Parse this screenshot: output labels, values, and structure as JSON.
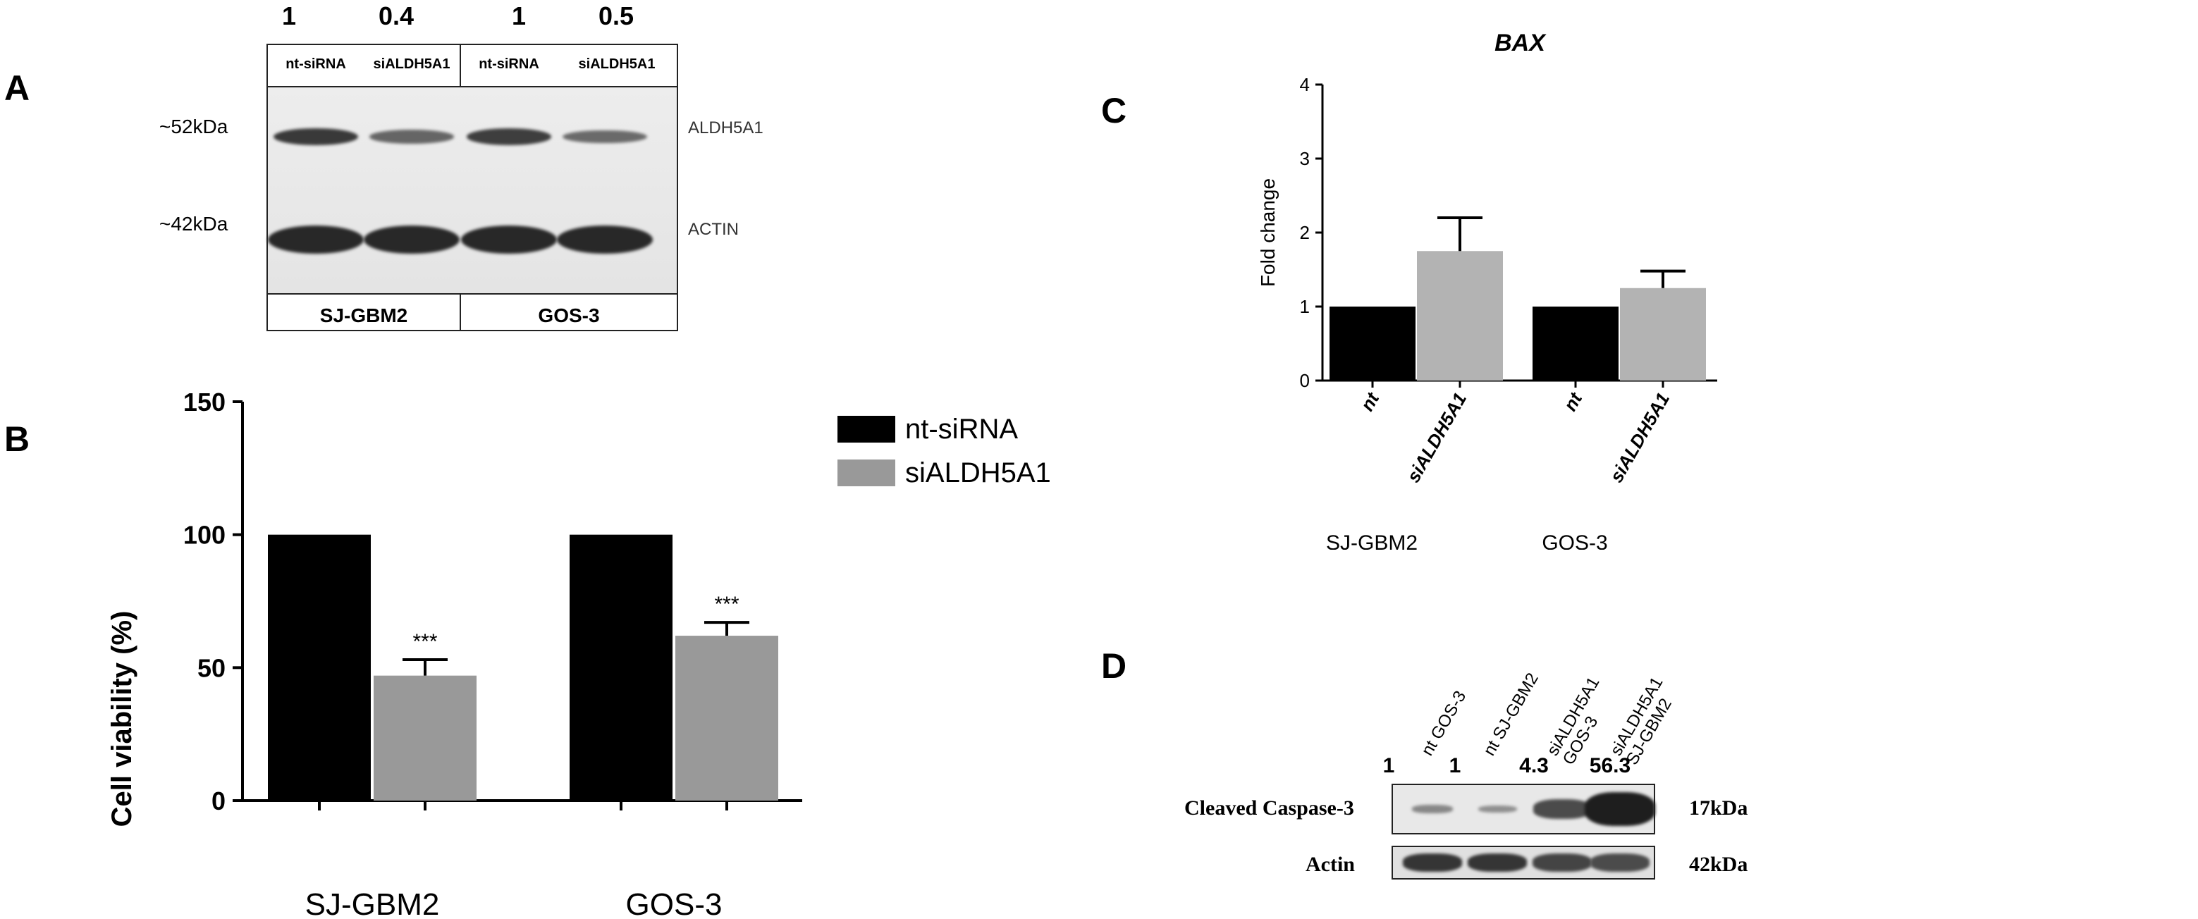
{
  "panel_labels": {
    "a": "A",
    "b": "B",
    "c": "C",
    "d": "D"
  },
  "panel_a": {
    "quantification": [
      "1",
      "0.4",
      "1",
      "0.5"
    ],
    "lanes": [
      "nt-siRNA",
      "siALDH5A1",
      "nt-siRNA",
      "siALDH5A1"
    ],
    "band_rows": [
      {
        "size": "~52kDa",
        "protein": "ALDH5A1",
        "intensities": [
          0.85,
          0.45,
          0.8,
          0.4
        ]
      },
      {
        "size": "~42kDa",
        "protein": "ACTIN",
        "intensities": [
          1.0,
          1.0,
          1.0,
          1.0
        ]
      }
    ],
    "cell_lines": [
      "SJ-GBM2",
      "GOS-3"
    ]
  },
  "panel_d": {
    "lanes": [
      "nt GOS-3",
      "nt SJ-GBM2",
      "siALDH5A1 GOS-3",
      "siALDH5A1 SJ-GBM2"
    ],
    "lane_lines": [
      [
        "nt GOS-3"
      ],
      [
        "nt SJ-GBM2"
      ],
      [
        "siALDH5A1",
        "GOS-3"
      ],
      [
        "siALDH5A1",
        "SJ-GBM2"
      ]
    ],
    "quantification": [
      "1",
      "1",
      "4.3",
      "56.3"
    ],
    "band_rows": [
      {
        "protein": "Cleaved Caspase-3",
        "size": "17kDa",
        "intensities": [
          0.3,
          0.25,
          0.7,
          1.0
        ]
      },
      {
        "protein": "Actin",
        "size": "42kDa",
        "intensities": [
          0.85,
          0.85,
          0.75,
          0.7
        ]
      }
    ]
  },
  "chart_data": [
    {
      "panel": "B",
      "type": "bar",
      "categories": [
        "SJ-GBM2",
        "GOS-3"
      ],
      "series": [
        {
          "name": "nt-siRNA",
          "values": [
            100,
            100
          ],
          "errors": [
            0,
            0
          ],
          "color": "#000000"
        },
        {
          "name": "siALDH5A1",
          "values": [
            47,
            62
          ],
          "errors": [
            6,
            5
          ],
          "color": "#999999"
        }
      ],
      "annotations": [
        "***",
        "***"
      ],
      "ylabel": "Cell viability (%)",
      "xlabel": "",
      "ylim": [
        0,
        150
      ],
      "yticks": [
        0,
        50,
        100,
        150
      ],
      "legend": "right",
      "grid": false
    },
    {
      "panel": "C",
      "type": "bar",
      "title": "BAX",
      "groups": [
        "SJ-GBM2",
        "GOS-3"
      ],
      "tick_labels": [
        "nt",
        "siALDH5A1",
        "nt",
        "siALDH5A1"
      ],
      "series": [
        {
          "name": "nt",
          "values": [
            1.0,
            1.0
          ],
          "errors": [
            0,
            0
          ],
          "color": "#000000"
        },
        {
          "name": "siALDH5A1",
          "values": [
            1.75,
            1.25
          ],
          "errors": [
            0.45,
            0.23
          ],
          "color": "#b3b3b3"
        }
      ],
      "ylabel": "Fold change",
      "xlabel": "",
      "ylim": [
        0,
        4
      ],
      "yticks": [
        0,
        1,
        2,
        3,
        4
      ],
      "legend": "none",
      "grid": false
    }
  ]
}
